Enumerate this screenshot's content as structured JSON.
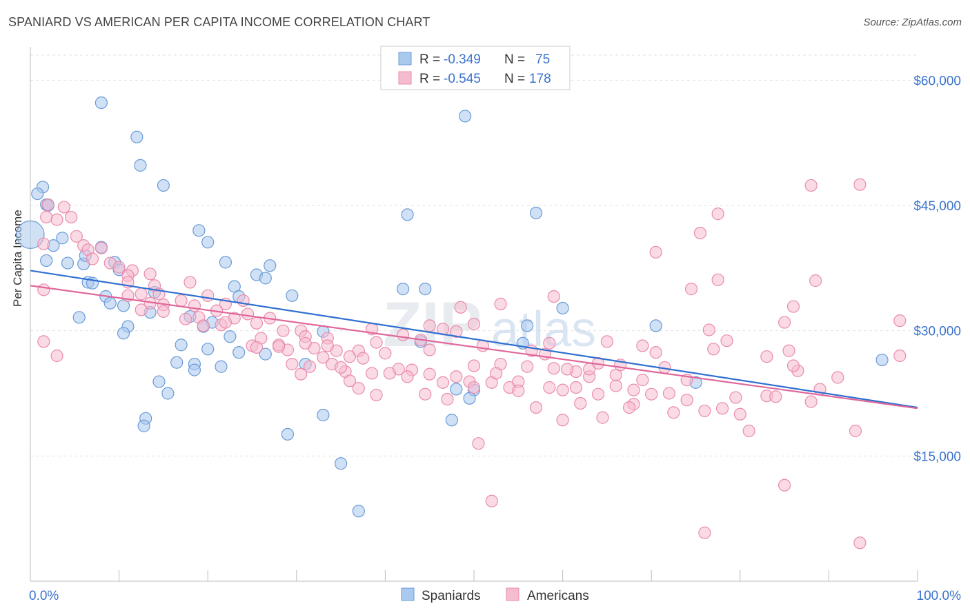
{
  "title": "SPANIARD VS AMERICAN PER CAPITA INCOME CORRELATION CHART",
  "source": "Source: ZipAtlas.com",
  "watermark": {
    "part1": "ZIP",
    "part2": "atlas"
  },
  "legend_stats": [
    {
      "r_label": "R =",
      "r_value": "-0.349",
      "n_label": "N =",
      "n_value": "75"
    },
    {
      "r_label": "R =",
      "r_value": "-0.545",
      "n_label": "N =",
      "n_value": "178"
    }
  ],
  "colors": {
    "spaniards": "#a9c9ef",
    "spaniards_stroke": "#6a9bd8",
    "spaniards_line": "#2f6fd1",
    "americans": "#f5bcd0",
    "americans_stroke": "#e98cab",
    "americans_line": "#e0679a",
    "axis_text": "#3b73cc"
  },
  "chart_data": {
    "type": "scatter",
    "title": "SPANIARD VS AMERICAN PER CAPITA INCOME CORRELATION CHART",
    "xlabel": "",
    "ylabel": "Per Capita Income",
    "xlim": [
      0,
      100
    ],
    "ylim": [
      0,
      63000
    ],
    "x_tick_labels": [
      "0.0%",
      "100.0%"
    ],
    "y_ticks": [
      15000,
      30000,
      45000,
      60000
    ],
    "y_tick_labels": [
      "$15,000",
      "$30,000",
      "$45,000",
      "$60,000"
    ],
    "grid": true,
    "legend_position": "bottom-center",
    "series": [
      {
        "name": "Spaniards",
        "r": -0.349,
        "n": 75,
        "trend": {
          "x": [
            0,
            100
          ],
          "y": [
            37200,
            20800
          ]
        },
        "points": [
          [
            8,
            57300
          ],
          [
            12,
            53200
          ],
          [
            12.4,
            49800
          ],
          [
            15,
            47400
          ],
          [
            1.4,
            47200
          ],
          [
            0.8,
            46400
          ],
          [
            1.8,
            45100
          ],
          [
            2,
            45000
          ],
          [
            0,
            41500
          ],
          [
            19,
            42000
          ],
          [
            20,
            40600
          ],
          [
            2.6,
            40200
          ],
          [
            3.6,
            41100
          ],
          [
            1.8,
            38400
          ],
          [
            4.2,
            38100
          ],
          [
            6,
            38000
          ],
          [
            6.2,
            39000
          ],
          [
            8,
            40000
          ],
          [
            9.5,
            38200
          ],
          [
            10,
            37300
          ],
          [
            22,
            38200
          ],
          [
            25.5,
            36700
          ],
          [
            26.5,
            36300
          ],
          [
            27,
            37800
          ],
          [
            6.5,
            35800
          ],
          [
            7,
            35700
          ],
          [
            23,
            35300
          ],
          [
            14,
            34600
          ],
          [
            8.5,
            34100
          ],
          [
            9,
            33300
          ],
          [
            23.5,
            34100
          ],
          [
            29.5,
            34200
          ],
          [
            10.5,
            33000
          ],
          [
            13.5,
            32200
          ],
          [
            5.5,
            31600
          ],
          [
            18,
            31700
          ],
          [
            20.5,
            31000
          ],
          [
            19.5,
            30500
          ],
          [
            11,
            30500
          ],
          [
            10.5,
            29700
          ],
          [
            22.5,
            29300
          ],
          [
            33,
            29900
          ],
          [
            17,
            28300
          ],
          [
            20,
            27800
          ],
          [
            23.5,
            27400
          ],
          [
            26.5,
            27200
          ],
          [
            16.5,
            26200
          ],
          [
            18.5,
            26000
          ],
          [
            18.5,
            25300
          ],
          [
            21.5,
            25700
          ],
          [
            31,
            26000
          ],
          [
            14.5,
            23900
          ],
          [
            15.5,
            22500
          ],
          [
            13,
            19500
          ],
          [
            12.8,
            18600
          ],
          [
            33,
            19900
          ],
          [
            29,
            17600
          ],
          [
            35,
            14100
          ],
          [
            37,
            8400
          ],
          [
            42,
            35000
          ],
          [
            44.5,
            35000
          ],
          [
            42.5,
            43900
          ],
          [
            49,
            55700
          ],
          [
            57,
            44100
          ],
          [
            55.5,
            28500
          ],
          [
            44,
            28700
          ],
          [
            47.5,
            19300
          ],
          [
            50,
            22900
          ],
          [
            48,
            23000
          ],
          [
            49.5,
            21900
          ],
          [
            56,
            30600
          ],
          [
            60,
            32700
          ],
          [
            70.5,
            30600
          ],
          [
            75,
            23800
          ],
          [
            96,
            26500
          ]
        ]
      },
      {
        "name": "Americans",
        "r": -0.545,
        "n": 178,
        "trend": {
          "x": [
            0,
            100
          ],
          "y": [
            35400,
            20700
          ]
        },
        "points": [
          [
            2,
            45100
          ],
          [
            3.8,
            44800
          ],
          [
            1.8,
            43600
          ],
          [
            4.6,
            43600
          ],
          [
            3,
            43300
          ],
          [
            5.2,
            41300
          ],
          [
            6,
            40200
          ],
          [
            8,
            39900
          ],
          [
            6.5,
            39700
          ],
          [
            1.5,
            40400
          ],
          [
            7,
            38600
          ],
          [
            9,
            38100
          ],
          [
            10,
            37600
          ],
          [
            11.5,
            37200
          ],
          [
            13.5,
            36800
          ],
          [
            11,
            36600
          ],
          [
            11,
            35800
          ],
          [
            14,
            35400
          ],
          [
            12.5,
            34400
          ],
          [
            18,
            35800
          ],
          [
            13.5,
            33300
          ],
          [
            15,
            33100
          ],
          [
            12.5,
            32500
          ],
          [
            15,
            32300
          ],
          [
            17,
            33600
          ],
          [
            18.5,
            33000
          ],
          [
            20,
            34200
          ],
          [
            22,
            33200
          ],
          [
            24,
            33600
          ],
          [
            21,
            32400
          ],
          [
            19,
            31600
          ],
          [
            24.5,
            32000
          ],
          [
            23,
            31500
          ],
          [
            25.5,
            30900
          ],
          [
            19.5,
            30600
          ],
          [
            21.5,
            30700
          ],
          [
            27,
            31500
          ],
          [
            28.5,
            30000
          ],
          [
            30.5,
            30000
          ],
          [
            26,
            29100
          ],
          [
            25,
            28200
          ],
          [
            28,
            28300
          ],
          [
            31,
            29300
          ],
          [
            33.5,
            29100
          ],
          [
            25.5,
            28000
          ],
          [
            29,
            27700
          ],
          [
            32,
            27900
          ],
          [
            33,
            26800
          ],
          [
            34.5,
            27600
          ],
          [
            36,
            26900
          ],
          [
            34,
            26000
          ],
          [
            29.5,
            26000
          ],
          [
            31.5,
            25700
          ],
          [
            37,
            27600
          ],
          [
            38.5,
            30200
          ],
          [
            39,
            28600
          ],
          [
            35.5,
            25100
          ],
          [
            37.5,
            26700
          ],
          [
            40,
            27300
          ],
          [
            41.5,
            25400
          ],
          [
            38.5,
            24900
          ],
          [
            36,
            24000
          ],
          [
            42,
            29500
          ],
          [
            44,
            28900
          ],
          [
            45,
            27700
          ],
          [
            43,
            25300
          ],
          [
            45,
            24800
          ],
          [
            48,
            24500
          ],
          [
            49.5,
            23900
          ],
          [
            46.5,
            23800
          ],
          [
            50,
            23200
          ],
          [
            52,
            23800
          ],
          [
            54,
            23200
          ],
          [
            55,
            23900
          ],
          [
            48.5,
            32800
          ],
          [
            46.5,
            30200
          ],
          [
            45,
            30600
          ],
          [
            48,
            29900
          ],
          [
            51,
            28200
          ],
          [
            50,
            25800
          ],
          [
            53,
            26000
          ],
          [
            56.5,
            27600
          ],
          [
            58,
            27200
          ],
          [
            59,
            25500
          ],
          [
            55,
            22800
          ],
          [
            57,
            20800
          ],
          [
            58.5,
            23200
          ],
          [
            60,
            22900
          ],
          [
            61.5,
            23200
          ],
          [
            60,
            19300
          ],
          [
            62,
            21300
          ],
          [
            61.5,
            25100
          ],
          [
            63,
            24500
          ],
          [
            64,
            26100
          ],
          [
            64.5,
            19600
          ],
          [
            64,
            22400
          ],
          [
            66,
            24700
          ],
          [
            66,
            23400
          ],
          [
            68,
            22900
          ],
          [
            69,
            24100
          ],
          [
            69,
            28200
          ],
          [
            70.5,
            27400
          ],
          [
            71.5,
            25600
          ],
          [
            70,
            22400
          ],
          [
            68,
            21200
          ],
          [
            67.5,
            20800
          ],
          [
            72,
            22500
          ],
          [
            74,
            24100
          ],
          [
            72.5,
            20200
          ],
          [
            74,
            21700
          ],
          [
            76,
            20400
          ],
          [
            78,
            20700
          ],
          [
            79.5,
            22000
          ],
          [
            80,
            20000
          ],
          [
            81,
            18000
          ],
          [
            77,
            27800
          ],
          [
            76.5,
            30100
          ],
          [
            78.5,
            28800
          ],
          [
            74.5,
            35000
          ],
          [
            77.5,
            36100
          ],
          [
            83,
            26900
          ],
          [
            85.5,
            27600
          ],
          [
            86.5,
            25200
          ],
          [
            83,
            22200
          ],
          [
            84,
            22100
          ],
          [
            86,
            25800
          ],
          [
            88,
            21500
          ],
          [
            89,
            23000
          ],
          [
            91,
            24400
          ],
          [
            93,
            18000
          ],
          [
            85,
            31000
          ],
          [
            86,
            32900
          ],
          [
            88.5,
            36000
          ],
          [
            98,
            27000
          ],
          [
            98,
            31200
          ],
          [
            70.5,
            39400
          ],
          [
            75.5,
            41700
          ],
          [
            77.5,
            44000
          ],
          [
            85,
            11500
          ],
          [
            76,
            5800
          ],
          [
            93.5,
            4600
          ],
          [
            88,
            47400
          ],
          [
            93.5,
            47500
          ],
          [
            59,
            34100
          ],
          [
            53,
            33200
          ],
          [
            50,
            30800
          ],
          [
            65,
            28700
          ],
          [
            63,
            25400
          ],
          [
            66.5,
            25900
          ],
          [
            56,
            25700
          ],
          [
            60.5,
            25400
          ],
          [
            52.5,
            24900
          ],
          [
            47,
            21800
          ],
          [
            50.5,
            16500
          ],
          [
            44.5,
            22400
          ],
          [
            42.5,
            24500
          ],
          [
            40.5,
            24900
          ],
          [
            39,
            22300
          ],
          [
            37,
            23100
          ],
          [
            35,
            25600
          ],
          [
            30.5,
            24800
          ],
          [
            28,
            28100
          ],
          [
            31,
            28500
          ],
          [
            33.5,
            28200
          ],
          [
            22,
            31000
          ],
          [
            17.5,
            31400
          ],
          [
            14.5,
            34400
          ],
          [
            11,
            34200
          ],
          [
            3,
            27000
          ],
          [
            1.5,
            28700
          ],
          [
            1.5,
            34900
          ],
          [
            52,
            9600
          ],
          [
            58.5,
            28500
          ]
        ]
      }
    ]
  }
}
